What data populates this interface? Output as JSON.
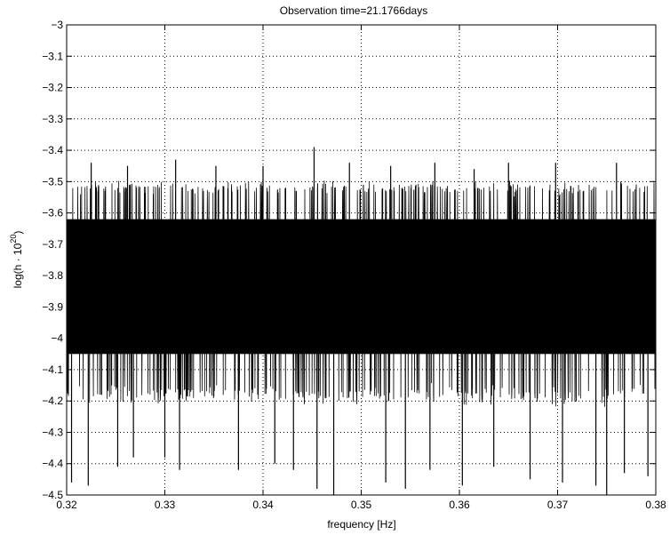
{
  "chart_data": {
    "type": "line",
    "title": "Observation time=21.1766days",
    "xlabel": "frequency [Hz]",
    "ylabel_main": "log(h · 10",
    "ylabel_sup": "20",
    "ylabel_close": ")",
    "xlim": [
      0.32,
      0.38
    ],
    "ylim": [
      -4.5,
      -3
    ],
    "grid": true,
    "x_ticks": [
      {
        "value": 0.32,
        "label": "0.32"
      },
      {
        "value": 0.33,
        "label": "0.33"
      },
      {
        "value": 0.34,
        "label": "0.34"
      },
      {
        "value": 0.35,
        "label": "0.35"
      },
      {
        "value": 0.36,
        "label": "0.36"
      },
      {
        "value": 0.37,
        "label": "0.37"
      },
      {
        "value": 0.38,
        "label": "0.38"
      }
    ],
    "y_ticks": [
      {
        "value": -3.0,
        "label": "−3"
      },
      {
        "value": -3.1,
        "label": "−3.1"
      },
      {
        "value": -3.2,
        "label": "−3.2"
      },
      {
        "value": -3.3,
        "label": "−3.3"
      },
      {
        "value": -3.4,
        "label": "−3.4"
      },
      {
        "value": -3.5,
        "label": "−3.5"
      },
      {
        "value": -3.6,
        "label": "−3.6"
      },
      {
        "value": -3.7,
        "label": "−3.7"
      },
      {
        "value": -3.8,
        "label": "−3.8"
      },
      {
        "value": -3.9,
        "label": "−3.9"
      },
      {
        "value": -4.0,
        "label": "−4"
      },
      {
        "value": -4.1,
        "label": "−4.1"
      },
      {
        "value": -4.2,
        "label": "−4.2"
      },
      {
        "value": -4.3,
        "label": "−4.3"
      },
      {
        "value": -4.4,
        "label": "−4.4"
      },
      {
        "value": -4.5,
        "label": "−4.5"
      }
    ],
    "series": [
      {
        "color": "#000000",
        "noise": {
          "mean": -3.83,
          "dense_range": [
            -3.62,
            -4.05
          ],
          "typical_max": -3.52,
          "typical_min": -4.18
        },
        "peaks": [
          {
            "x": 0.3225,
            "y": -3.44
          },
          {
            "x": 0.3262,
            "y": -3.45
          },
          {
            "x": 0.3311,
            "y": -3.43
          },
          {
            "x": 0.3352,
            "y": -3.45
          },
          {
            "x": 0.34,
            "y": -3.45
          },
          {
            "x": 0.3452,
            "y": -3.39
          },
          {
            "x": 0.3488,
            "y": -3.44
          },
          {
            "x": 0.353,
            "y": -3.45
          },
          {
            "x": 0.3575,
            "y": -3.44
          },
          {
            "x": 0.3615,
            "y": -3.46
          },
          {
            "x": 0.365,
            "y": -3.44
          },
          {
            "x": 0.3698,
            "y": -3.44
          },
          {
            "x": 0.376,
            "y": -3.44
          }
        ],
        "dips": [
          {
            "x": 0.3205,
            "y": -4.46
          },
          {
            "x": 0.3222,
            "y": -4.47
          },
          {
            "x": 0.3252,
            "y": -4.41
          },
          {
            "x": 0.3268,
            "y": -4.38
          },
          {
            "x": 0.33,
            "y": -4.38
          },
          {
            "x": 0.3315,
            "y": -4.42
          },
          {
            "x": 0.3375,
            "y": -4.42
          },
          {
            "x": 0.3412,
            "y": -4.4
          },
          {
            "x": 0.3431,
            "y": -4.42
          },
          {
            "x": 0.3455,
            "y": -4.48
          },
          {
            "x": 0.3472,
            "y": -4.5
          },
          {
            "x": 0.3525,
            "y": -4.46
          },
          {
            "x": 0.3545,
            "y": -4.48
          },
          {
            "x": 0.357,
            "y": -4.42
          },
          {
            "x": 0.3603,
            "y": -4.47
          },
          {
            "x": 0.3635,
            "y": -4.41
          },
          {
            "x": 0.3672,
            "y": -4.45
          },
          {
            "x": 0.3705,
            "y": -4.46
          },
          {
            "x": 0.3739,
            "y": -4.47
          },
          {
            "x": 0.375,
            "y": -4.5
          },
          {
            "x": 0.3768,
            "y": -4.43
          },
          {
            "x": 0.3792,
            "y": -4.44
          }
        ]
      }
    ]
  }
}
